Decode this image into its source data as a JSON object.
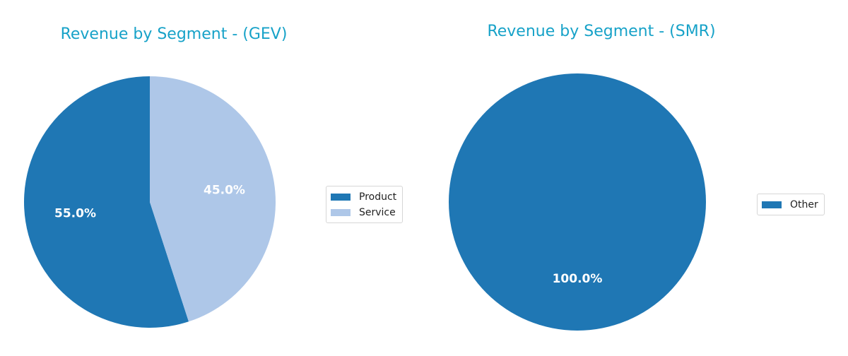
{
  "chart_data": [
    {
      "type": "pie",
      "title": "Revenue by Segment - (GEV)",
      "categories": [
        "Product",
        "Service"
      ],
      "values": [
        55.0,
        45.0
      ],
      "labels": [
        "55.0%",
        "45.0%"
      ],
      "colors": [
        "#1f77b4",
        "#aec7e8"
      ],
      "legend": "right"
    },
    {
      "type": "pie",
      "title": "Revenue by Segment - (SMR)",
      "categories": [
        "Other"
      ],
      "values": [
        100.0
      ],
      "labels": [
        "100.0%"
      ],
      "colors": [
        "#1f77b4"
      ],
      "legend": "right"
    }
  ]
}
